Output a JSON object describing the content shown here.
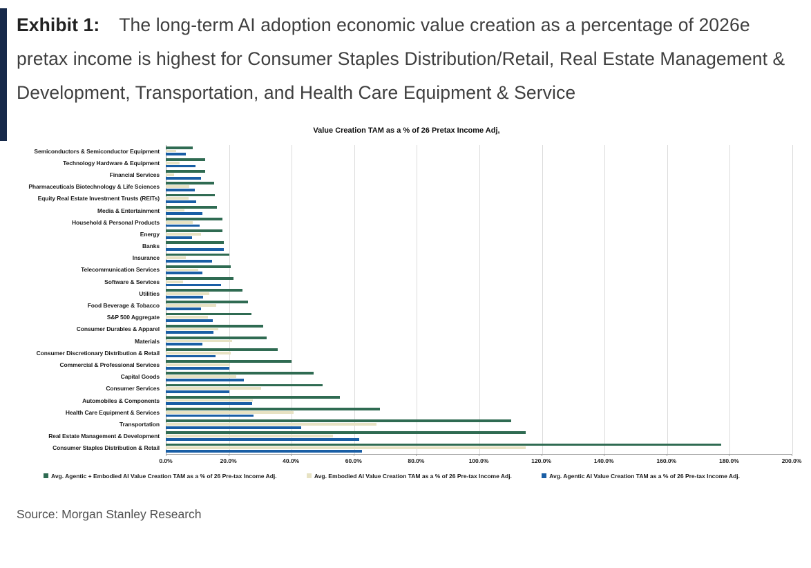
{
  "exhibit": {
    "label": "Exhibit 1:",
    "title": "The long-term AI adoption economic value creation as a percentage of 2026e pretax income is highest for Consumer Staples Distribution/Retail, Real Estate Management & Development, Transportation, and Health Care Equipment & Service"
  },
  "source": "Source: Morgan Stanley Research",
  "colors": {
    "accent_bar": "#16294A",
    "agentic_plus_embodied": "#2F6B52",
    "embodied": "#E7E2C3",
    "agentic": "#195EA5",
    "gridline": "#DBDBDB",
    "axis_line": "#9B9B9B"
  },
  "chart_data": {
    "type": "bar",
    "orientation": "horizontal",
    "title": "Value Creation TAM as a % of 26 Pretax Income Adj,",
    "grid": true,
    "legend_position": "bottom",
    "xlim": [
      0,
      200
    ],
    "x_tick_step": 20,
    "x_ticks": [
      "0.0%",
      "20.0%",
      "40.0%",
      "60.0%",
      "80.0%",
      "100.0%",
      "120.0%",
      "140.0%",
      "160.0%",
      "180.0%",
      "200.0%"
    ],
    "categories": [
      "Semiconductors & Semiconductor Equipment",
      "Technology Hardware & Equipment",
      "Financial Services",
      "Pharmaceuticals Biotechnology & Life Sciences",
      "Equity Real Estate Investment Trusts (REITs)",
      "Media & Entertainment",
      "Household & Personal Products",
      "Energy",
      "Banks",
      "Insurance",
      "Telecommunication Services",
      "Software & Services",
      "Utilities",
      "Food Beverage & Tobacco",
      "S&P 500 Aggregate",
      "Consumer Durables & Apparel",
      "Materials",
      "Consumer Discretionary Distribution & Retail",
      "Commercial & Professional Services",
      "Capital Goods",
      "Consumer Services",
      "Automobiles & Components",
      "Health Care Equipment & Services",
      "Transportation",
      "Real Estate Management & Development",
      "Consumer Staples Distribution & Retail"
    ],
    "series": [
      {
        "name": "Avg. Agentic + Embodied AI Value Creation TAM as a % of 26 Pre-tax Income Adj.",
        "key": "agentic-embodied",
        "color": "#2F6B52",
        "values": [
          8.7,
          12.5,
          12.6,
          15.4,
          15.6,
          16.3,
          18.0,
          18.0,
          18.6,
          20.3,
          20.7,
          21.7,
          24.6,
          26.2,
          27.4,
          31.2,
          32.2,
          35.8,
          40.2,
          47.3,
          50.2,
          55.6,
          68.5,
          110.3,
          115.0,
          177.5
        ]
      },
      {
        "name": "Avg. Embodied AI Value Creation TAM as a % of 26 Pre-tax Income Adj.",
        "key": "embodied",
        "color": "#E7E2C3",
        "values": [
          3.4,
          4.4,
          2.6,
          7.5,
          7.3,
          6.0,
          8.7,
          11.3,
          0.0,
          6.5,
          10.4,
          5.5,
          14.0,
          16.1,
          13.5,
          16.8,
          21.2,
          20.8,
          20.4,
          22.6,
          30.4,
          27.8,
          40.8,
          67.4,
          53.4,
          115.0
        ]
      },
      {
        "name": "Avg. Agentic AI Value Creation TAM as a % of 26 Pre-tax Income Adj.",
        "key": "agentic",
        "color": "#195EA5",
        "values": [
          6.4,
          9.6,
          11.3,
          9.3,
          9.8,
          11.6,
          10.9,
          8.3,
          18.6,
          14.7,
          11.6,
          17.6,
          12.0,
          11.3,
          15.0,
          15.2,
          11.8,
          15.9,
          20.4,
          25.0,
          20.2,
          27.6,
          28.0,
          43.2,
          61.7,
          62.8
        ]
      }
    ]
  }
}
